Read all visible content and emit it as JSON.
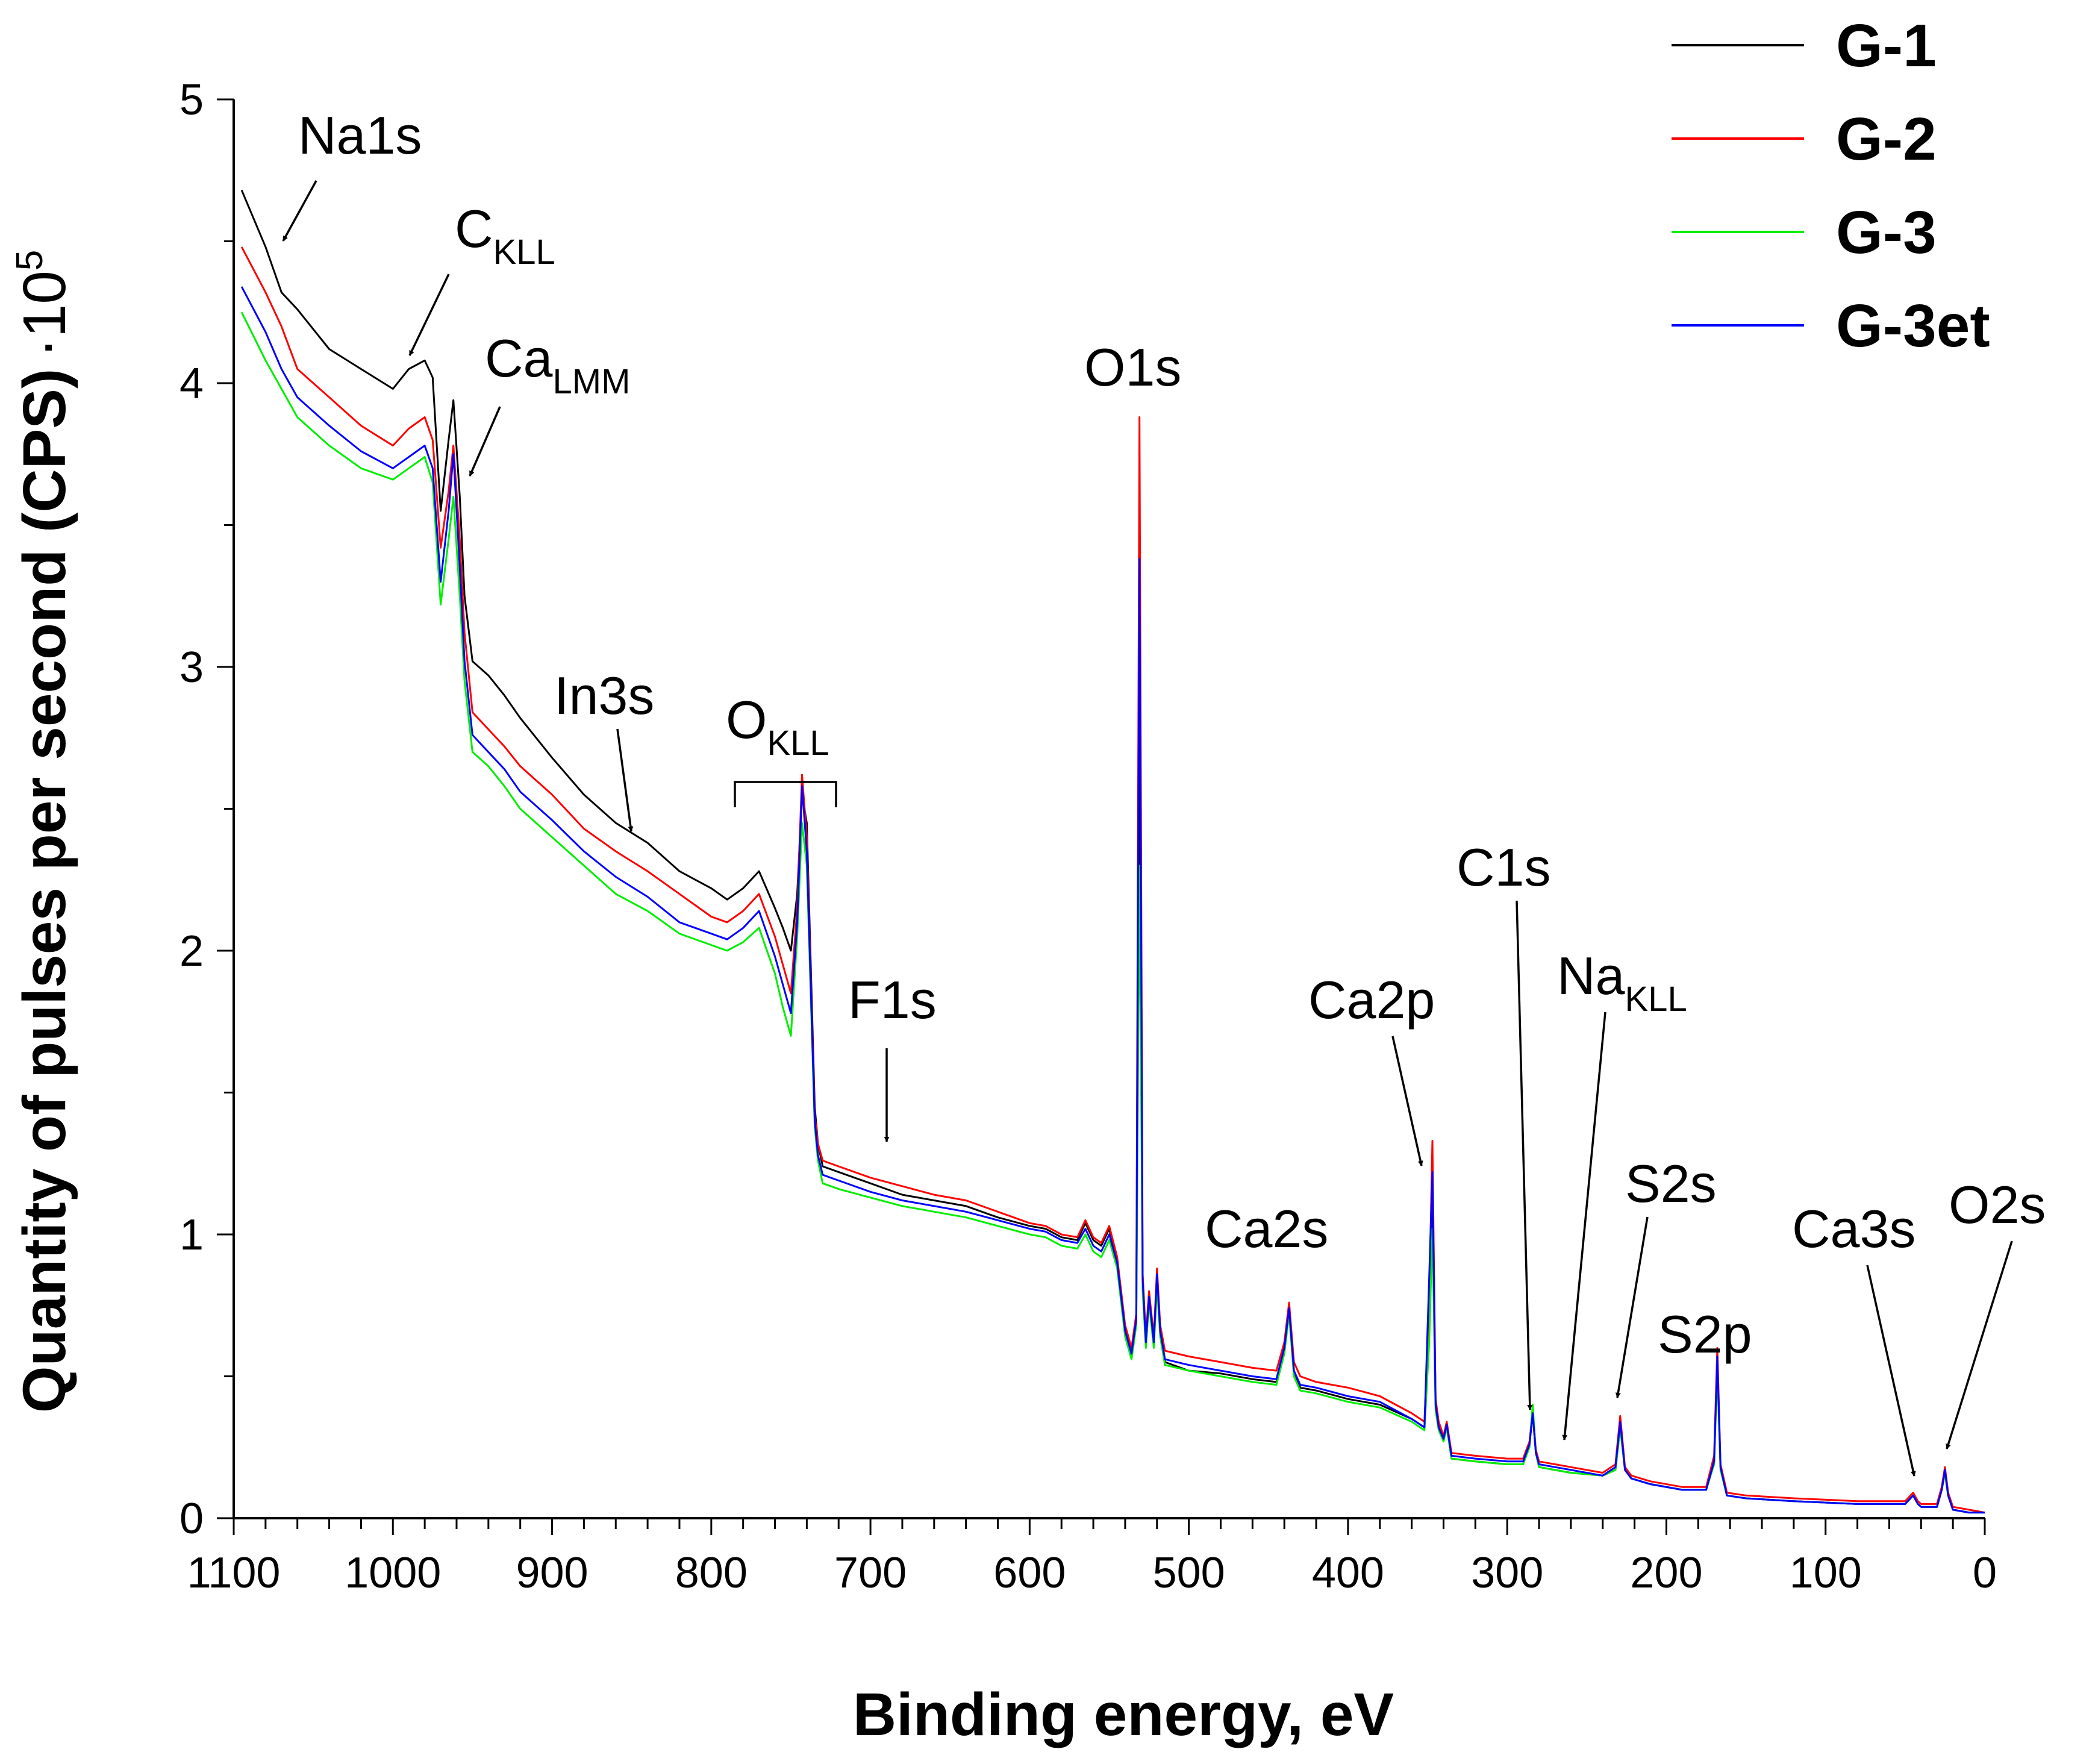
{
  "chart_data": {
    "type": "line",
    "title": "",
    "xlabel": "Binding energy, eV",
    "ylabel": "Quantity of pulses per second (CPS)",
    "ylabel_suffix": "·10",
    "ylabel_exponent": "5",
    "xlim": [
      1100,
      0
    ],
    "ylim": [
      0,
      5
    ],
    "x_ticks": [
      1100,
      1000,
      900,
      800,
      700,
      600,
      500,
      400,
      300,
      200,
      100,
      0
    ],
    "x_tick_labels": [
      "1100",
      "1000",
      "900",
      "800",
      "700",
      "600",
      "500",
      "400",
      "300",
      "200",
      "100",
      "0"
    ],
    "y_ticks": [
      0,
      1,
      2,
      3,
      4,
      5
    ],
    "y_tick_labels": [
      "0",
      "1",
      "2",
      "3",
      "4",
      "5"
    ],
    "grid": false,
    "legend_position": "top-right",
    "x": [
      1095,
      1080,
      1070,
      1060,
      1040,
      1020,
      1000,
      990,
      980,
      975,
      970,
      965,
      962,
      958,
      955,
      950,
      940,
      930,
      920,
      900,
      880,
      860,
      840,
      820,
      800,
      790,
      780,
      770,
      760,
      755,
      750,
      746,
      743,
      740,
      737,
      735,
      733,
      730,
      720,
      700,
      680,
      660,
      640,
      620,
      600,
      590,
      580,
      570,
      565,
      560,
      555,
      550,
      545,
      540,
      536,
      533,
      531,
      529,
      527,
      525,
      522,
      520,
      518,
      515,
      500,
      480,
      460,
      445,
      440,
      437,
      434,
      430,
      420,
      400,
      380,
      360,
      352,
      349,
      347,
      345,
      343,
      340,
      338,
      335,
      320,
      300,
      290,
      286,
      284,
      282,
      280,
      270,
      260,
      240,
      232,
      229,
      226,
      222,
      210,
      190,
      175,
      170,
      168,
      166,
      162,
      150,
      120,
      80,
      50,
      45,
      42,
      40,
      30,
      27,
      25,
      23,
      20,
      10,
      0
    ],
    "series": [
      {
        "name": "G-1",
        "color": "#000000",
        "values": [
          4.68,
          4.48,
          4.32,
          4.26,
          4.12,
          4.05,
          3.98,
          4.05,
          4.08,
          4.02,
          3.55,
          3.8,
          3.94,
          3.6,
          3.25,
          3.02,
          2.97,
          2.9,
          2.82,
          2.68,
          2.55,
          2.45,
          2.38,
          2.28,
          2.22,
          2.18,
          2.22,
          2.28,
          2.15,
          2.08,
          2.0,
          2.2,
          2.55,
          2.45,
          1.85,
          1.45,
          1.32,
          1.24,
          1.22,
          1.18,
          1.14,
          1.12,
          1.1,
          1.06,
          1.03,
          1.02,
          0.99,
          0.98,
          1.04,
          0.98,
          0.96,
          1.02,
          0.9,
          0.66,
          0.58,
          0.7,
          2.85,
          0.82,
          0.62,
          0.78,
          0.62,
          0.85,
          0.66,
          0.55,
          0.52,
          0.51,
          0.49,
          0.48,
          0.6,
          0.74,
          0.52,
          0.46,
          0.45,
          0.42,
          0.4,
          0.35,
          0.32,
          0.7,
          1.2,
          0.4,
          0.32,
          0.28,
          0.33,
          0.21,
          0.2,
          0.19,
          0.19,
          0.26,
          0.37,
          0.23,
          0.18,
          0.17,
          0.16,
          0.15,
          0.17,
          0.32,
          0.17,
          0.14,
          0.12,
          0.1,
          0.1,
          0.2,
          0.55,
          0.18,
          0.08,
          0.07,
          0.06,
          0.05,
          0.05,
          0.08,
          0.05,
          0.04,
          0.04,
          0.1,
          0.16,
          0.08,
          0.03,
          0.02,
          0.02
        ]
      },
      {
        "name": "G-2",
        "color": "#ff0000",
        "values": [
          4.48,
          4.32,
          4.2,
          4.05,
          3.95,
          3.85,
          3.78,
          3.84,
          3.88,
          3.8,
          3.42,
          3.62,
          3.78,
          3.45,
          3.12,
          2.84,
          2.78,
          2.72,
          2.65,
          2.55,
          2.43,
          2.35,
          2.28,
          2.2,
          2.12,
          2.1,
          2.14,
          2.2,
          2.05,
          1.95,
          1.85,
          2.15,
          2.62,
          2.4,
          1.8,
          1.42,
          1.32,
          1.26,
          1.24,
          1.2,
          1.17,
          1.14,
          1.12,
          1.08,
          1.04,
          1.03,
          1.0,
          0.99,
          1.05,
          0.99,
          0.97,
          1.03,
          0.92,
          0.68,
          0.6,
          0.72,
          3.88,
          0.86,
          0.64,
          0.8,
          0.64,
          0.88,
          0.68,
          0.59,
          0.57,
          0.55,
          0.53,
          0.52,
          0.62,
          0.76,
          0.55,
          0.5,
          0.48,
          0.46,
          0.43,
          0.37,
          0.34,
          0.75,
          1.33,
          0.42,
          0.34,
          0.29,
          0.34,
          0.23,
          0.22,
          0.21,
          0.21,
          0.27,
          0.38,
          0.24,
          0.2,
          0.19,
          0.18,
          0.16,
          0.19,
          0.36,
          0.18,
          0.15,
          0.13,
          0.11,
          0.11,
          0.22,
          0.6,
          0.19,
          0.09,
          0.08,
          0.07,
          0.06,
          0.06,
          0.09,
          0.06,
          0.05,
          0.05,
          0.11,
          0.18,
          0.09,
          0.04,
          0.03,
          0.02
        ]
      },
      {
        "name": "G-3",
        "color": "#00ee00",
        "values": [
          4.25,
          4.08,
          3.98,
          3.88,
          3.78,
          3.7,
          3.66,
          3.7,
          3.74,
          3.65,
          3.22,
          3.45,
          3.6,
          3.25,
          2.95,
          2.7,
          2.65,
          2.58,
          2.5,
          2.4,
          2.3,
          2.2,
          2.14,
          2.06,
          2.02,
          2.0,
          2.03,
          2.08,
          1.92,
          1.8,
          1.7,
          2.05,
          2.45,
          2.3,
          1.75,
          1.38,
          1.26,
          1.18,
          1.16,
          1.13,
          1.1,
          1.08,
          1.06,
          1.03,
          1.0,
          0.99,
          0.96,
          0.95,
          1.0,
          0.94,
          0.92,
          0.98,
          0.88,
          0.64,
          0.56,
          0.68,
          2.3,
          0.8,
          0.6,
          0.76,
          0.6,
          0.82,
          0.64,
          0.54,
          0.52,
          0.5,
          0.48,
          0.47,
          0.58,
          0.72,
          0.5,
          0.45,
          0.44,
          0.41,
          0.39,
          0.34,
          0.31,
          0.62,
          1.02,
          0.38,
          0.31,
          0.27,
          0.32,
          0.21,
          0.2,
          0.19,
          0.19,
          0.25,
          0.4,
          0.23,
          0.18,
          0.17,
          0.16,
          0.15,
          0.17,
          0.32,
          0.17,
          0.14,
          0.12,
          0.1,
          0.1,
          0.19,
          0.52,
          0.17,
          0.08,
          0.07,
          0.06,
          0.05,
          0.05,
          0.08,
          0.05,
          0.04,
          0.04,
          0.1,
          0.16,
          0.08,
          0.03,
          0.02,
          0.02
        ]
      },
      {
        "name": "G-3et",
        "color": "#0000ff",
        "values": [
          4.34,
          4.18,
          4.05,
          3.95,
          3.85,
          3.76,
          3.7,
          3.74,
          3.78,
          3.7,
          3.3,
          3.55,
          3.75,
          3.35,
          3.02,
          2.76,
          2.7,
          2.64,
          2.56,
          2.46,
          2.35,
          2.26,
          2.19,
          2.1,
          2.06,
          2.04,
          2.08,
          2.14,
          1.98,
          1.88,
          1.78,
          2.1,
          2.58,
          2.35,
          1.78,
          1.4,
          1.28,
          1.21,
          1.19,
          1.15,
          1.12,
          1.1,
          1.08,
          1.05,
          1.02,
          1.01,
          0.98,
          0.97,
          1.02,
          0.96,
          0.94,
          1.0,
          0.9,
          0.66,
          0.58,
          0.7,
          3.38,
          0.84,
          0.62,
          0.78,
          0.62,
          0.86,
          0.66,
          0.56,
          0.54,
          0.52,
          0.5,
          0.49,
          0.6,
          0.74,
          0.52,
          0.47,
          0.46,
          0.43,
          0.41,
          0.35,
          0.32,
          0.85,
          1.22,
          0.4,
          0.32,
          0.28,
          0.33,
          0.22,
          0.21,
          0.2,
          0.2,
          0.26,
          0.37,
          0.23,
          0.19,
          0.18,
          0.17,
          0.15,
          0.18,
          0.34,
          0.17,
          0.14,
          0.12,
          0.1,
          0.1,
          0.2,
          0.57,
          0.18,
          0.08,
          0.07,
          0.06,
          0.05,
          0.05,
          0.08,
          0.05,
          0.04,
          0.04,
          0.1,
          0.17,
          0.08,
          0.03,
          0.02,
          0.02
        ]
      }
    ],
    "annotations": [
      {
        "text": "Na1s",
        "sub": ""
      },
      {
        "text": "C",
        "sub": "KLL"
      },
      {
        "text": "Ca",
        "sub": "LMM"
      },
      {
        "text": "In3s",
        "sub": ""
      },
      {
        "text": "O",
        "sub": "KLL"
      },
      {
        "text": "F1s",
        "sub": ""
      },
      {
        "text": "O1s",
        "sub": ""
      },
      {
        "text": "Ca2s",
        "sub": ""
      },
      {
        "text": "Ca2p",
        "sub": ""
      },
      {
        "text": "C1s",
        "sub": ""
      },
      {
        "text": "Na",
        "sub": "KLL"
      },
      {
        "text": "S2s",
        "sub": ""
      },
      {
        "text": "S2p",
        "sub": ""
      },
      {
        "text": "Ca3s",
        "sub": ""
      },
      {
        "text": "O2s",
        "sub": ""
      }
    ]
  }
}
